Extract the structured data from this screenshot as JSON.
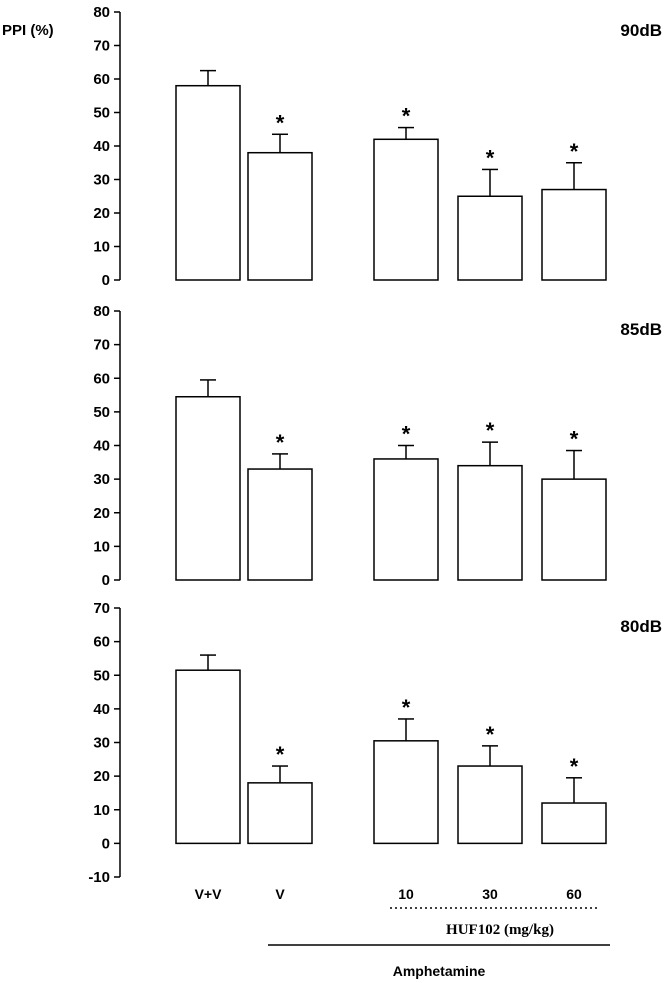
{
  "chart_data": [
    {
      "type": "bar",
      "panel_label": "90dB",
      "ylabel": "PPI (%)",
      "ylim": [
        0,
        80
      ],
      "ticks": [
        "80",
        "70",
        "60",
        "50",
        "40",
        "30",
        "20",
        "10",
        "0"
      ],
      "categories": [
        "V+V",
        "V",
        "10",
        "30",
        "60"
      ],
      "values": [
        58,
        38,
        42,
        25,
        27
      ],
      "errors": [
        4.5,
        5.5,
        3.5,
        8,
        8
      ],
      "significance": [
        "",
        "*",
        "*",
        "*",
        "*"
      ]
    },
    {
      "type": "bar",
      "panel_label": "85dB",
      "ylim": [
        0,
        80
      ],
      "ticks": [
        "80",
        "70",
        "60",
        "50",
        "40",
        "30",
        "20",
        "10",
        "0"
      ],
      "categories": [
        "V+V",
        "V",
        "10",
        "30",
        "60"
      ],
      "values": [
        54.5,
        33,
        36,
        34,
        30
      ],
      "errors": [
        5,
        4.5,
        4,
        7,
        8.5
      ],
      "significance": [
        "",
        "*",
        "*",
        "*",
        "*"
      ]
    },
    {
      "type": "bar",
      "panel_label": "80dB",
      "ylim": [
        -10,
        70
      ],
      "ticks": [
        "70",
        "60",
        "50",
        "40",
        "30",
        "20",
        "10",
        "0",
        "-10"
      ],
      "categories": [
        "V+V",
        "V",
        "10",
        "30",
        "60"
      ],
      "values": [
        51.5,
        18,
        30.5,
        23,
        12
      ],
      "errors": [
        4.5,
        5,
        6.5,
        6,
        7.5
      ],
      "significance": [
        "",
        "*",
        "*",
        "*",
        "*"
      ]
    }
  ],
  "x_axis": {
    "category_labels": [
      "V+V",
      "V",
      "10",
      "30",
      "60"
    ],
    "drug_label": "HUF102 (mg/kg)",
    "group_label": "Amphetamine"
  }
}
